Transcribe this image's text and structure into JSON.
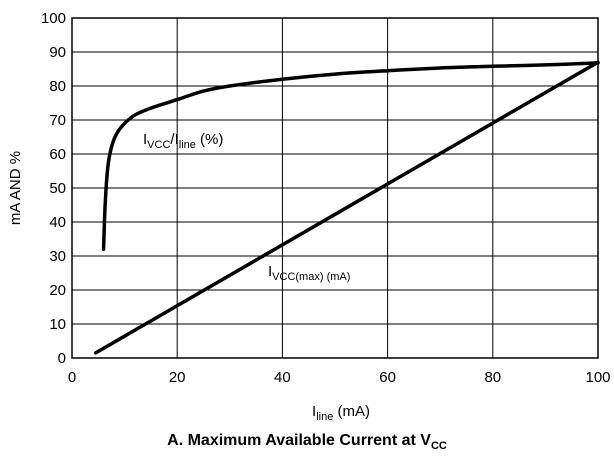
{
  "chart_data": {
    "type": "line",
    "title": "",
    "caption": {
      "prefix": "A. Maximum Available Current at V",
      "sub": "CC"
    },
    "xlabel": {
      "main": "I",
      "sub": "line",
      "suffix": " (mA)"
    },
    "ylabel": "mA AND %",
    "xlim": [
      0,
      100
    ],
    "ylim": [
      0,
      100
    ],
    "xticks": [
      0,
      20,
      40,
      60,
      80,
      100
    ],
    "yticks": [
      0,
      10,
      20,
      30,
      40,
      50,
      60,
      70,
      80,
      90,
      100
    ],
    "grid": true,
    "series": [
      {
        "label": {
          "main": "I",
          "sub1": "VCC",
          "mid": "/I",
          "sub2": "line",
          "suffix": " (%)"
        },
        "x": [
          6,
          6.3,
          6.8,
          7.5,
          8.5,
          10,
          12,
          15,
          20,
          25,
          30,
          40,
          50,
          60,
          70,
          80,
          90,
          100
        ],
        "y": [
          32,
          45,
          56,
          62,
          66,
          69,
          71.5,
          73.5,
          76,
          78.5,
          80,
          82,
          83.5,
          84.5,
          85.3,
          85.8,
          86.2,
          86.8
        ]
      },
      {
        "label": {
          "main": "I",
          "sub": "VCC(max)",
          "suffix": " (mA)"
        },
        "x": [
          4.5,
          100
        ],
        "y": [
          1.5,
          87
        ]
      }
    ]
  }
}
